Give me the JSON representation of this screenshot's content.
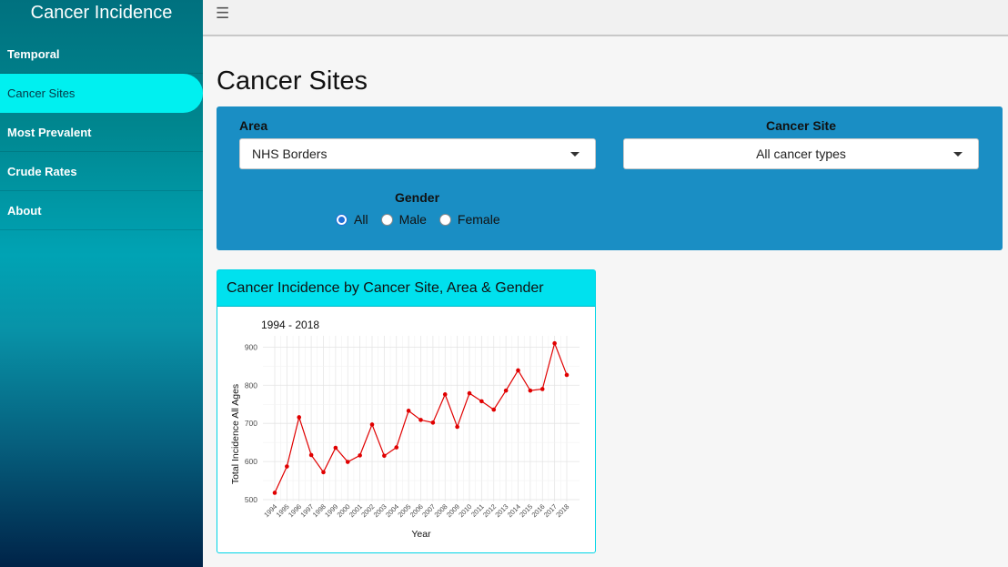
{
  "app": {
    "title": "Cancer Incidence"
  },
  "sidebar": {
    "items": [
      {
        "label": "Temporal"
      },
      {
        "label": "Cancer Sites"
      },
      {
        "label": "Most Prevalent"
      },
      {
        "label": "Crude Rates"
      },
      {
        "label": "About"
      }
    ],
    "active_index": 1
  },
  "topbar": {
    "menu_icon": "hamburger-icon"
  },
  "main": {
    "title": "Cancer Sites",
    "filters": {
      "area_label": "Area",
      "area_value": "NHS Borders",
      "site_label": "Cancer Site",
      "site_value": "All cancer types",
      "gender_label": "Gender",
      "gender_options": [
        "All",
        "Male",
        "Female"
      ],
      "gender_selected": "All"
    }
  },
  "card": {
    "title": "Cancer Incidence by Cancer Site, Area & Gender"
  },
  "colors": {
    "accent": "#00e1ee",
    "filter_bg": "#1a8ec4",
    "line": "#e00000"
  },
  "chart_data": {
    "type": "line",
    "title": "1994 - 2018",
    "xlabel": "Year",
    "ylabel": "Total Incidence All Ages",
    "ylim": [
      500,
      920
    ],
    "yticks": [
      500,
      600,
      700,
      800,
      900
    ],
    "grid": true,
    "x": [
      "1994",
      "1995",
      "1996",
      "1997",
      "1998",
      "1999",
      "2000",
      "2001",
      "2002",
      "2003",
      "2004",
      "2005",
      "2006",
      "2007",
      "2008",
      "2009",
      "2010",
      "2011",
      "2012",
      "2013",
      "2014",
      "2015",
      "2016",
      "2017",
      "2018"
    ],
    "series": [
      {
        "values": [
          518,
          587,
          716,
          617,
          572,
          636,
          599,
          616,
          697,
          615,
          637,
          733,
          709,
          702,
          776,
          691,
          779,
          758,
          736,
          786,
          839,
          786,
          790,
          910,
          827
        ]
      }
    ]
  }
}
